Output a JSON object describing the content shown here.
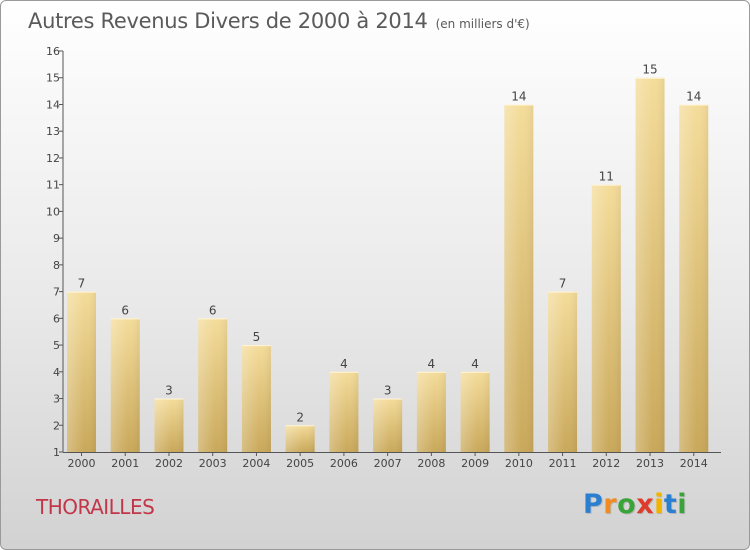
{
  "title": "Autres Revenus Divers de 2000 à 2014",
  "subtitle": "(en milliers d'€)",
  "place": "THORAILLES",
  "logo": {
    "letters": [
      "P",
      "r",
      "o",
      "x",
      "i",
      "t",
      "i"
    ],
    "colors": [
      "#2a7fd0",
      "#f28a1e",
      "#3aa43a",
      "#e03a2a",
      "#f0b400",
      "#2a7fd0",
      "#3aa43a"
    ]
  },
  "colors": {
    "bar_top": "#f4dc9a",
    "bar_bottom": "#c9a85a",
    "axis": "#555555",
    "text": "#444444",
    "place": "#c2364a"
  },
  "chart_data": {
    "type": "bar",
    "categories": [
      "2000",
      "2001",
      "2002",
      "2003",
      "2004",
      "2005",
      "2006",
      "2007",
      "2008",
      "2009",
      "2010",
      "2011",
      "2012",
      "2013",
      "2014"
    ],
    "values": [
      7,
      6,
      3,
      6,
      5,
      2,
      4,
      3,
      4,
      4,
      14,
      7,
      11,
      15,
      14
    ],
    "ylim": [
      1,
      16
    ],
    "yticks": [
      1,
      2,
      3,
      4,
      5,
      6,
      7,
      8,
      9,
      10,
      11,
      12,
      13,
      14,
      15,
      16
    ],
    "grid": false,
    "data_labels": true
  }
}
